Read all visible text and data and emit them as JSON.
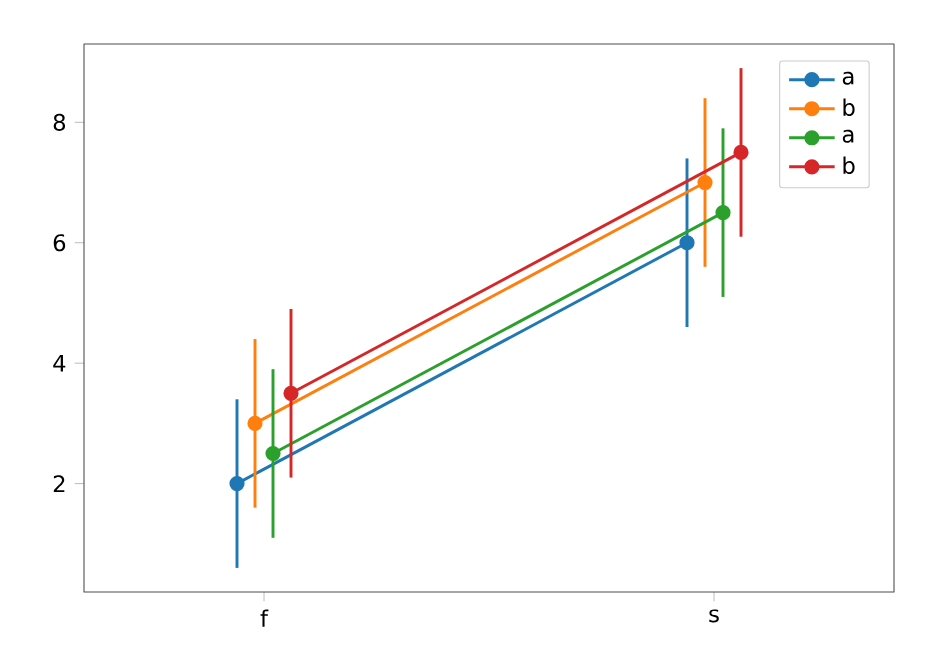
{
  "chart_data": {
    "type": "line",
    "categories": [
      "f",
      "s"
    ],
    "series": [
      {
        "name": "a",
        "color": "#1f77b4",
        "values": [
          2,
          6
        ],
        "errors": [
          1.4,
          1.4
        ]
      },
      {
        "name": "b",
        "color": "#ff7f0e",
        "values": [
          3,
          7
        ],
        "errors": [
          1.4,
          1.4
        ]
      },
      {
        "name": "a",
        "color": "#2ca02c",
        "values": [
          2.5,
          6.5
        ],
        "errors": [
          1.4,
          1.4
        ]
      },
      {
        "name": "b",
        "color": "#d62728",
        "values": [
          3.5,
          7.5
        ],
        "errors": [
          1.4,
          1.4
        ]
      }
    ],
    "ylim": [
      0.2,
      9.3
    ],
    "yticks": [
      2,
      4,
      6,
      8
    ],
    "grid": false,
    "legend": "top right",
    "marker": "circle",
    "line_style": "solid"
  }
}
